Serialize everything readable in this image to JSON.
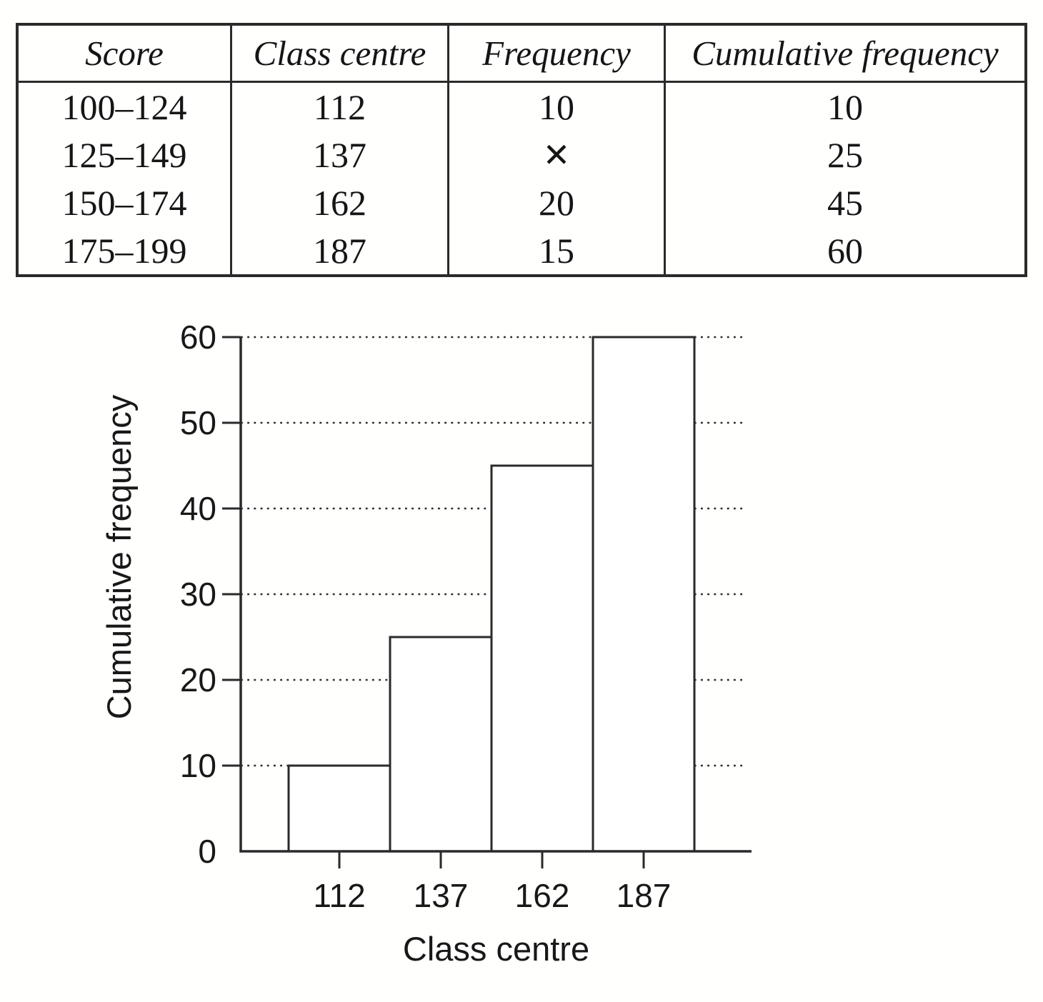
{
  "table": {
    "headers": [
      "Score",
      "Class centre",
      "Frequency",
      "Cumulative frequency"
    ],
    "rows": [
      {
        "score": "100–124",
        "class_centre": "112",
        "frequency": "10",
        "cumulative_frequency": "10"
      },
      {
        "score": "125–149",
        "class_centre": "137",
        "frequency": "✕",
        "cumulative_frequency": "25"
      },
      {
        "score": "150–174",
        "class_centre": "162",
        "frequency": "20",
        "cumulative_frequency": "45"
      },
      {
        "score": "175–199",
        "class_centre": "187",
        "frequency": "15",
        "cumulative_frequency": "60"
      }
    ]
  },
  "chart_data": {
    "type": "bar",
    "title": "",
    "categories": [
      "112",
      "137",
      "162",
      "187"
    ],
    "values": [
      10,
      25,
      45,
      60
    ],
    "series_name": "Cumulative frequency",
    "xlabel": "Class centre",
    "ylabel": "Cumulative frequency",
    "ylim": [
      0,
      60
    ],
    "yticks": [
      0,
      10,
      20,
      30,
      40,
      50,
      60
    ],
    "grid": "horizontal dotted lines at every y tick",
    "legend": "none",
    "bar_fill": "#ffffff",
    "line_color": "#2a2a2a"
  },
  "colors": {
    "ink": "#2a2a2a",
    "text": "#151515",
    "background": "#fffffe"
  }
}
